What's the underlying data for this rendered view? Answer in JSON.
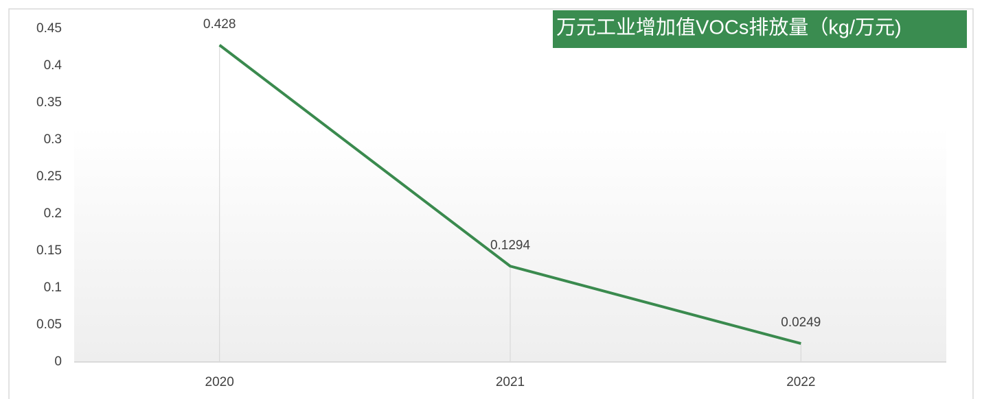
{
  "chart_data": {
    "type": "line",
    "title": "万元工业增加值VOCs排放量（kg/万元)",
    "categories": [
      "2020",
      "2021",
      "2022"
    ],
    "values": [
      0.428,
      0.1294,
      0.0249
    ],
    "color": "#3a8a4e",
    "title_color": "#3a8c50",
    "ylim": [
      0,
      0.45
    ],
    "yticks": [
      0,
      0.05,
      0.1,
      0.15,
      0.2,
      0.25,
      0.3,
      0.35,
      0.4,
      0.45
    ],
    "grid": false
  }
}
